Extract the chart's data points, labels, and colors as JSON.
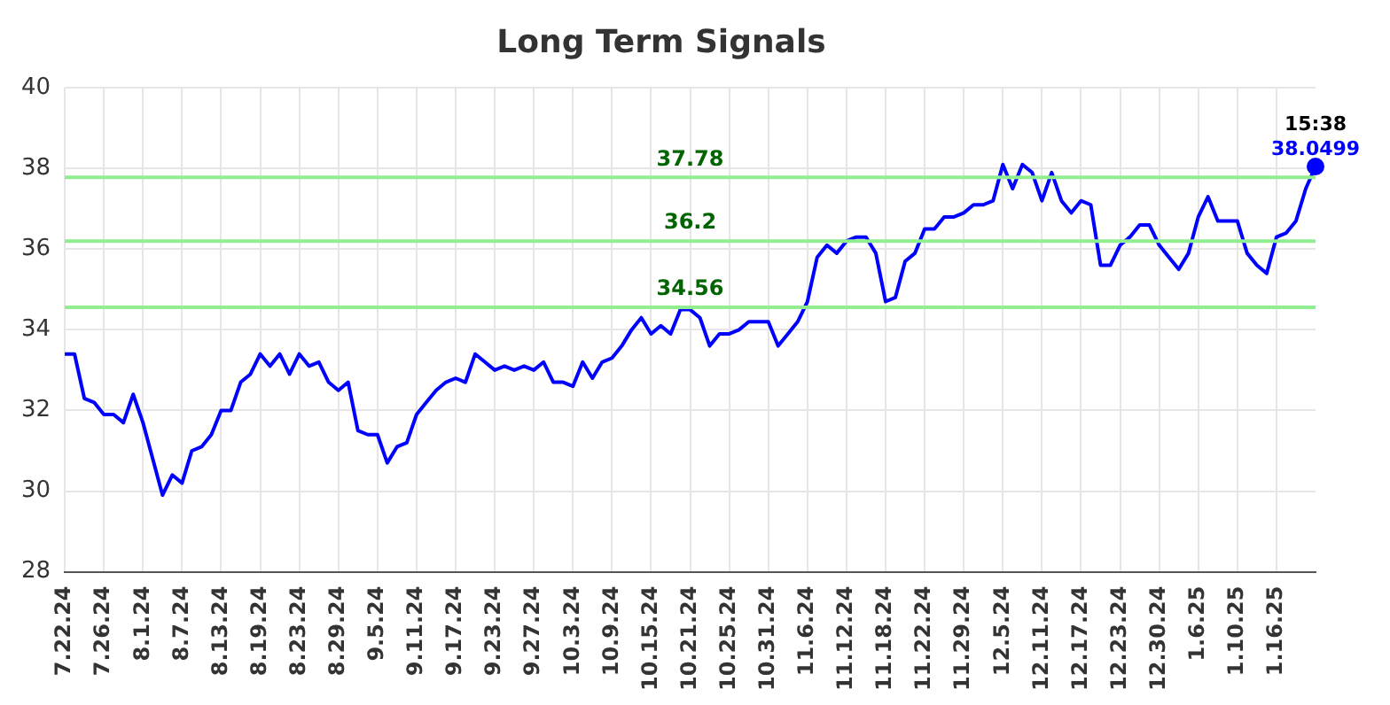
{
  "chart_data": {
    "type": "line",
    "title": "Long Term Signals",
    "categories": [
      "7.22.24",
      null,
      null,
      null,
      "7.26.24",
      null,
      null,
      null,
      "8.1.24",
      null,
      null,
      null,
      "8.7.24",
      null,
      null,
      null,
      "8.13.24",
      null,
      null,
      null,
      "8.19.24",
      null,
      null,
      null,
      "8.23.24",
      null,
      null,
      null,
      "8.29.24",
      null,
      null,
      null,
      "9.5.24",
      null,
      null,
      null,
      "9.11.24",
      null,
      null,
      null,
      "9.17.24",
      null,
      null,
      null,
      "9.23.24",
      null,
      null,
      null,
      "9.27.24",
      null,
      null,
      null,
      "10.3.24",
      null,
      null,
      null,
      "10.9.24",
      null,
      null,
      null,
      "10.15.24",
      null,
      null,
      null,
      "10.21.24",
      null,
      null,
      null,
      "10.25.24",
      null,
      null,
      null,
      "10.31.24",
      null,
      null,
      null,
      "11.6.24",
      null,
      null,
      null,
      "11.12.24",
      null,
      null,
      null,
      "11.18.24",
      null,
      null,
      null,
      "11.22.24",
      null,
      null,
      null,
      "11.29.24",
      null,
      null,
      null,
      "12.5.24",
      null,
      null,
      null,
      "12.11.24",
      null,
      null,
      null,
      "12.17.24",
      null,
      null,
      null,
      "12.23.24",
      null,
      null,
      null,
      "12.30.24",
      null,
      null,
      null,
      "1.6.25",
      null,
      null,
      null,
      "1.10.25",
      null,
      null,
      null,
      "1.16.25",
      null,
      null,
      null,
      null
    ],
    "series": [
      {
        "color": "#0000ff",
        "values": [
          33.4,
          33.4,
          32.3,
          32.2,
          31.9,
          31.9,
          31.7,
          32.4,
          31.7,
          30.8,
          29.9,
          30.4,
          30.2,
          31.0,
          31.1,
          31.4,
          32.0,
          32.0,
          32.7,
          32.9,
          33.4,
          33.1,
          33.4,
          32.9,
          33.4,
          33.1,
          33.2,
          32.7,
          32.5,
          32.7,
          31.5,
          31.4,
          31.4,
          30.7,
          31.1,
          31.2,
          31.9,
          32.2,
          32.5,
          32.7,
          32.8,
          32.7,
          33.4,
          33.2,
          33.0,
          33.1,
          33.0,
          33.1,
          33.0,
          33.2,
          32.7,
          32.7,
          32.6,
          33.2,
          32.8,
          33.2,
          33.3,
          33.6,
          34.0,
          34.3,
          33.9,
          34.1,
          33.9,
          34.5,
          34.5,
          34.3,
          33.6,
          33.9,
          33.9,
          34.0,
          34.2,
          34.2,
          34.2,
          33.6,
          33.9,
          34.2,
          34.7,
          35.8,
          36.1,
          35.9,
          36.2,
          36.3,
          36.3,
          35.9,
          34.7,
          34.8,
          35.7,
          35.9,
          36.5,
          36.5,
          36.8,
          36.8,
          36.9,
          37.1,
          37.1,
          37.2,
          38.1,
          37.5,
          38.1,
          37.9,
          37.2,
          37.9,
          37.2,
          36.9,
          37.2,
          37.1,
          35.6,
          35.6,
          36.1,
          36.3,
          36.6,
          36.6,
          36.1,
          35.8,
          35.5,
          35.9,
          36.8,
          37.3,
          36.7,
          36.7,
          36.7,
          35.9,
          35.6,
          35.4,
          36.3,
          36.4,
          36.7,
          37.5,
          38.0499
        ],
        "value_labels": [
          null,
          null,
          null,
          null,
          null,
          null,
          null,
          null,
          null,
          null,
          null,
          null,
          null,
          null,
          null,
          null,
          null,
          null,
          null,
          null,
          null,
          null,
          null,
          null,
          null,
          null,
          null,
          null,
          null,
          null,
          null,
          null,
          null,
          null,
          null,
          null,
          null,
          null,
          null,
          null,
          null,
          null,
          null,
          null,
          null,
          null,
          null,
          null,
          null,
          null,
          null,
          null,
          null,
          null,
          null,
          null,
          null,
          null,
          null,
          null,
          null,
          null,
          null,
          null,
          null,
          null,
          null,
          null,
          null,
          null,
          null,
          null,
          null,
          null,
          null,
          null,
          null,
          null,
          null,
          null,
          null,
          null,
          null,
          null,
          null,
          null,
          null,
          null,
          null,
          null,
          null,
          null,
          null,
          null,
          null,
          null,
          null,
          null,
          null,
          null,
          null,
          null,
          null,
          null,
          null,
          null,
          null,
          null,
          null,
          null,
          null,
          null,
          null,
          null,
          null,
          null,
          null,
          null,
          null,
          null,
          null,
          null,
          null,
          null,
          null,
          null,
          null,
          null,
          "38.0499"
        ]
      }
    ],
    "annotations": [
      {
        "text": "15:38",
        "y": 38.0499
      }
    ],
    "ref_lines": [
      {
        "axis": "y",
        "value": 37.78,
        "label": "37.78",
        "color": "#90ee90"
      },
      {
        "axis": "y",
        "value": 36.2,
        "label": "36.2",
        "color": "#90ee90"
      },
      {
        "axis": "y",
        "value": 34.56,
        "label": "34.56",
        "color": "#90ee90"
      }
    ],
    "ylim": [
      28,
      40
    ],
    "yticks": [
      28,
      30,
      32,
      34,
      36,
      38,
      40
    ],
    "grid": true,
    "legend": false
  }
}
